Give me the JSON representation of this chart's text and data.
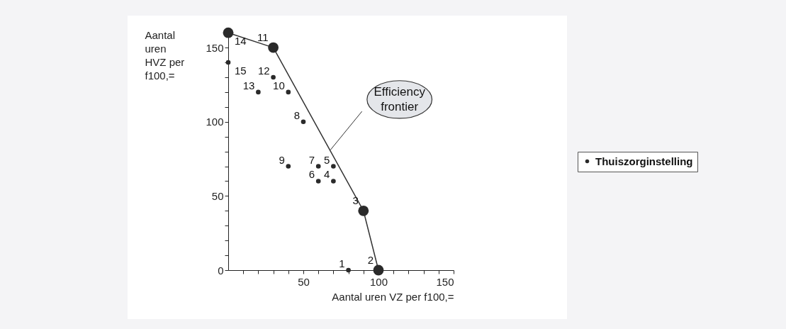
{
  "chart_data": {
    "type": "bubble",
    "xlabel": "Aantal uren VZ per f100,=",
    "ylabel": "Aantal uren HVZ per f100,=",
    "xlim": [
      0,
      150
    ],
    "ylim": [
      0,
      162
    ],
    "xticks": [
      {
        "value": 10,
        "label": null
      },
      {
        "value": 20,
        "label": null
      },
      {
        "value": 30,
        "label": null
      },
      {
        "value": 40,
        "label": null
      },
      50,
      {
        "value": 60,
        "label": null
      },
      {
        "value": 70,
        "label": null
      },
      {
        "value": 80,
        "label": null
      },
      {
        "value": 90,
        "label": null
      },
      100,
      {
        "value": 110,
        "label": null
      },
      {
        "value": 120,
        "label": null
      },
      {
        "value": 130,
        "label": null
      },
      {
        "value": 140,
        "label": null
      },
      150
    ],
    "yticks": [
      0,
      {
        "value": 10,
        "label": null
      },
      {
        "value": 20,
        "label": null
      },
      {
        "value": 30,
        "label": null
      },
      {
        "value": 40,
        "label": null
      },
      50,
      {
        "value": 60,
        "label": null
      },
      {
        "value": 70,
        "label": null
      },
      {
        "value": 80,
        "label": null
      },
      {
        "value": 90,
        "label": null
      },
      100,
      {
        "value": 110,
        "label": null
      },
      {
        "value": 120,
        "label": null
      },
      {
        "value": 130,
        "label": null
      },
      {
        "value": 140,
        "label": null
      },
      150
    ],
    "grid": false,
    "legend": "right",
    "series": [
      {
        "name": "Thuiszorginstelling",
        "color": "#2a2a2a",
        "x": [
          80,
          100,
          90,
          70,
          70,
          60,
          60,
          50,
          40,
          40,
          30,
          30,
          20,
          0,
          0
        ],
        "values": [
          0,
          0,
          40,
          60,
          70,
          60,
          70,
          100,
          70,
          120,
          150,
          130,
          120,
          160,
          140
        ],
        "sizes": [
          0.2,
          1,
          1,
          0.2,
          0.2,
          0.2,
          0.2,
          0.2,
          0.2,
          0.2,
          1,
          0.2,
          0.2,
          1,
          0.2
        ]
      },
      {
        "type": "line",
        "color": "#333333",
        "x": [
          0,
          30,
          90,
          100
        ],
        "values": [
          160,
          150,
          40,
          0
        ]
      }
    ],
    "annotations": [
      {
        "text": "1",
        "x": 80,
        "y": 0
      },
      {
        "text": "2",
        "x": 100,
        "y": 0
      },
      {
        "text": "3",
        "x": 90,
        "y": 40
      },
      {
        "text": "4",
        "x": 70,
        "y": 60
      },
      {
        "text": "5",
        "x": 70,
        "y": 70
      },
      {
        "text": "6",
        "x": 60,
        "y": 60
      },
      {
        "text": "7",
        "x": 60,
        "y": 70
      },
      {
        "text": "8",
        "x": 50,
        "y": 100
      },
      {
        "text": "9",
        "x": 40,
        "y": 70
      },
      {
        "text": "10",
        "x": 40,
        "y": 120
      },
      {
        "text": "11",
        "x": 30,
        "y": 150
      },
      {
        "text": "12",
        "x": 30,
        "y": 130
      },
      {
        "text": "13",
        "x": 20,
        "y": 120
      },
      {
        "text": "14",
        "x": 0,
        "y": 160
      },
      {
        "text": "15",
        "x": 0,
        "y": 140
      },
      {
        "text": "Efficiency frontier",
        "x": 68,
        "y": 81
      }
    ]
  }
}
